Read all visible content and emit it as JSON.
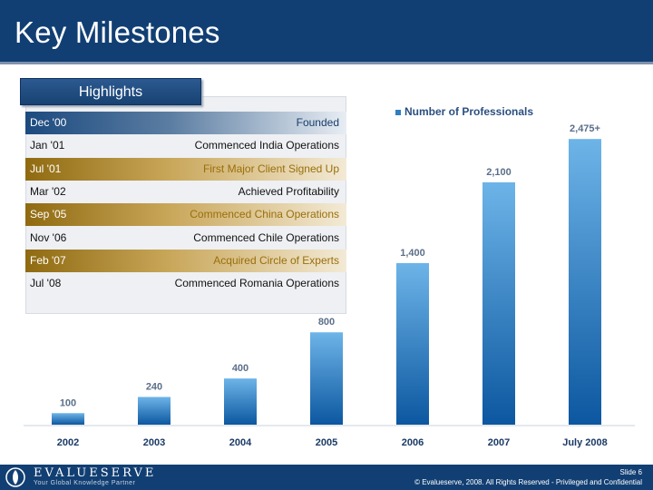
{
  "slide": {
    "title": "Key Milestones",
    "number": "Slide 6",
    "copyright": "© Evalueserve, 2008. All Rights Reserved - Privileged and Confidential"
  },
  "brand": {
    "name": "EVALUESERVE",
    "tagline": "Your Global Knowledge Partner"
  },
  "highlights": {
    "header": "Highlights",
    "items": [
      {
        "date": "Dec '00",
        "event": "Founded",
        "style": "blue"
      },
      {
        "date": "Jan '01",
        "event": "Commenced India Operations",
        "style": "plain"
      },
      {
        "date": "Jul '01",
        "event": "First Major Client Signed Up",
        "style": "gold"
      },
      {
        "date": "Mar '02",
        "event": "Achieved Profitability",
        "style": "plain"
      },
      {
        "date": "Sep '05",
        "event": "Commenced China Operations",
        "style": "gold"
      },
      {
        "date": "Nov '06",
        "event": "Commenced Chile Operations",
        "style": "plain"
      },
      {
        "date": "Feb '07",
        "event": "Acquired Circle of Experts",
        "style": "gold"
      },
      {
        "date": "Jul '08",
        "event": "Commenced Romania Operations",
        "style": "plain"
      }
    ]
  },
  "chart_data": {
    "type": "bar",
    "title": "",
    "categories": [
      "2002",
      "2003",
      "2004",
      "2005",
      "2006",
      "2007",
      "July 2008"
    ],
    "series": [
      {
        "name": "Number of Professionals",
        "values": [
          100,
          240,
          400,
          800,
          1400,
          2100,
          2475
        ]
      }
    ],
    "data_labels": [
      "100",
      "240",
      "400",
      "800",
      "1,400",
      "2,100",
      "2,475+"
    ],
    "legend_position": "top",
    "ylim": [
      0,
      2500
    ],
    "grid": false,
    "colors": {
      "bar_light": "#5aa7e0",
      "bar_dark": "#0d5aa3",
      "label": "#5b6f8a",
      "xlabel": "#1a3a66"
    }
  }
}
